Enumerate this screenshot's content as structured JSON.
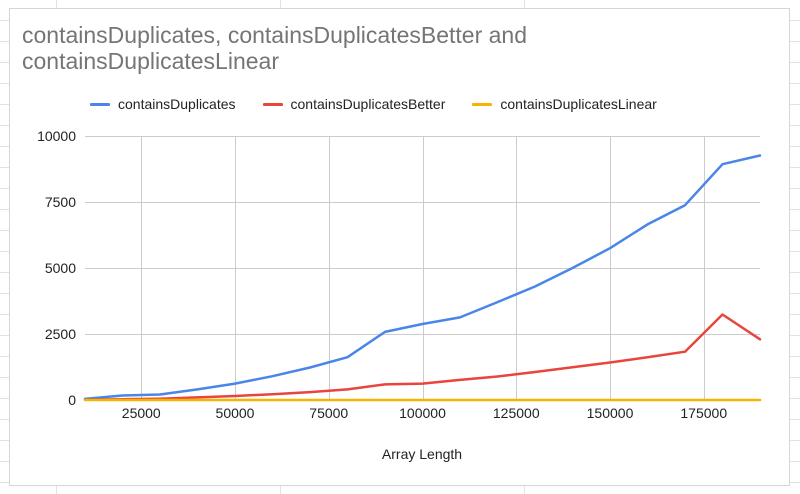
{
  "chart_data": {
    "type": "line",
    "title": "containsDuplicates, containsDuplicatesBetter and containsDuplicatesLinear",
    "xlabel": "Array Length",
    "ylabel": "",
    "xlim": [
      10000,
      190000
    ],
    "ylim": [
      0,
      10000
    ],
    "x_ticks": [
      25000,
      50000,
      75000,
      100000,
      125000,
      150000,
      175000
    ],
    "y_ticks": [
      0,
      2500,
      5000,
      7500,
      10000
    ],
    "x_tick_labels": [
      "25000",
      "50000",
      "75000",
      "100000",
      "125000",
      "150000",
      "175000"
    ],
    "y_tick_labels": [
      "0",
      "2500",
      "5000",
      "7500",
      "10000"
    ],
    "grid": true,
    "legend_position": "top",
    "x": [
      10000,
      20000,
      30000,
      40000,
      50000,
      60000,
      70000,
      80000,
      90000,
      100000,
      110000,
      120000,
      130000,
      140000,
      150000,
      160000,
      170000,
      180000,
      190000
    ],
    "series": [
      {
        "name": "containsDuplicates",
        "color": "#4a86e8",
        "values": [
          40,
          170,
          210,
          400,
          620,
          900,
          1230,
          1620,
          2580,
          2880,
          3130,
          3710,
          4300,
          5000,
          5750,
          6650,
          7380,
          8930,
          9260
        ]
      },
      {
        "name": "containsDuplicatesBetter",
        "color": "#e8453c",
        "values": [
          10,
          30,
          50,
          100,
          150,
          220,
          300,
          400,
          590,
          620,
          760,
          890,
          1060,
          1240,
          1420,
          1620,
          1830,
          3240,
          2300
        ]
      },
      {
        "name": "containsDuplicatesLinear",
        "color": "#f4b400",
        "values": [
          0,
          0,
          0,
          0,
          0,
          0,
          0,
          0,
          0,
          0,
          0,
          0,
          0,
          0,
          0,
          0,
          0,
          0,
          0
        ]
      }
    ]
  }
}
